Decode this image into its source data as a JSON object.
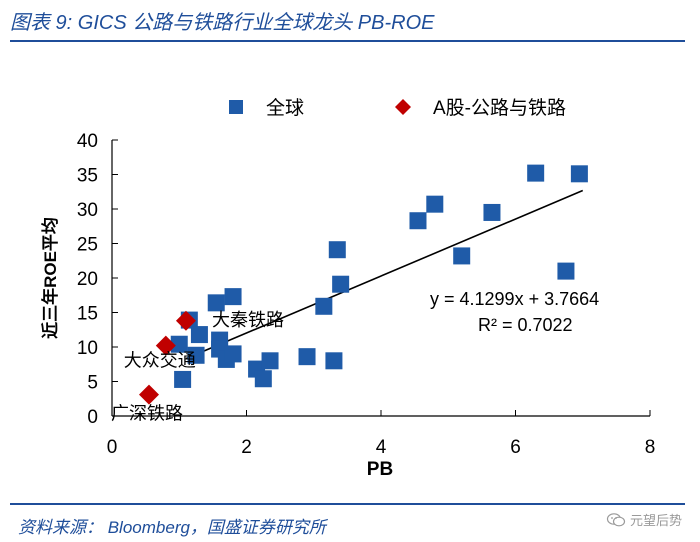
{
  "header": {
    "title": "图表 9:  GICS 公路与铁路行业全球龙头 PB-ROE"
  },
  "footer": {
    "source": "资料来源： Bloomberg，国盛证券研究所",
    "watermark": "元望后势"
  },
  "colors": {
    "brand": "#1F4E9A",
    "global_marker": "#1F5BA8",
    "a_share_marker": "#C00000",
    "axis": "#000000",
    "trendline": "#000000"
  },
  "chart_data": {
    "type": "scatter",
    "title": "",
    "xlabel": "PB",
    "ylabel": "近三年ROE平均",
    "xlim": [
      0,
      8
    ],
    "ylim": [
      0,
      40
    ],
    "xticks": [
      0,
      2,
      4,
      6,
      8
    ],
    "yticks": [
      0,
      5,
      10,
      15,
      20,
      25,
      30,
      35,
      40
    ],
    "legend_position": "top",
    "series": [
      {
        "name": "全球",
        "marker": "square",
        "points": [
          [
            1.0,
            10.4
          ],
          [
            1.05,
            5.3
          ],
          [
            1.15,
            13.9
          ],
          [
            1.3,
            11.8
          ],
          [
            1.25,
            8.8
          ],
          [
            1.55,
            16.4
          ],
          [
            1.6,
            11.0
          ],
          [
            1.6,
            9.7
          ],
          [
            1.7,
            8.2
          ],
          [
            1.8,
            17.3
          ],
          [
            1.8,
            9.0
          ],
          [
            2.15,
            6.8
          ],
          [
            2.25,
            5.4
          ],
          [
            2.35,
            8.0
          ],
          [
            2.9,
            8.6
          ],
          [
            3.15,
            15.9
          ],
          [
            3.3,
            8.0
          ],
          [
            3.35,
            24.1
          ],
          [
            3.4,
            19.1
          ],
          [
            4.55,
            28.3
          ],
          [
            4.8,
            30.7
          ],
          [
            5.2,
            23.2
          ],
          [
            5.65,
            29.5
          ],
          [
            6.3,
            35.2
          ],
          [
            6.75,
            21.0
          ],
          [
            6.95,
            35.1
          ]
        ]
      },
      {
        "name": "A股-公路与铁路",
        "marker": "diamond",
        "points": [
          {
            "x": 0.55,
            "y": 3.1,
            "label": "广深铁路"
          },
          {
            "x": 0.8,
            "y": 10.2,
            "label": "大众交通"
          },
          {
            "x": 1.1,
            "y": 13.8,
            "label": "大秦铁路"
          }
        ]
      }
    ],
    "trendline": {
      "type": "linear",
      "slope": 4.1299,
      "intercept": 3.7664,
      "x_range": [
        1.1,
        7.0
      ],
      "equation": "y = 4.1299x + 3.7664",
      "r_squared": "R² = 0.7022"
    }
  }
}
